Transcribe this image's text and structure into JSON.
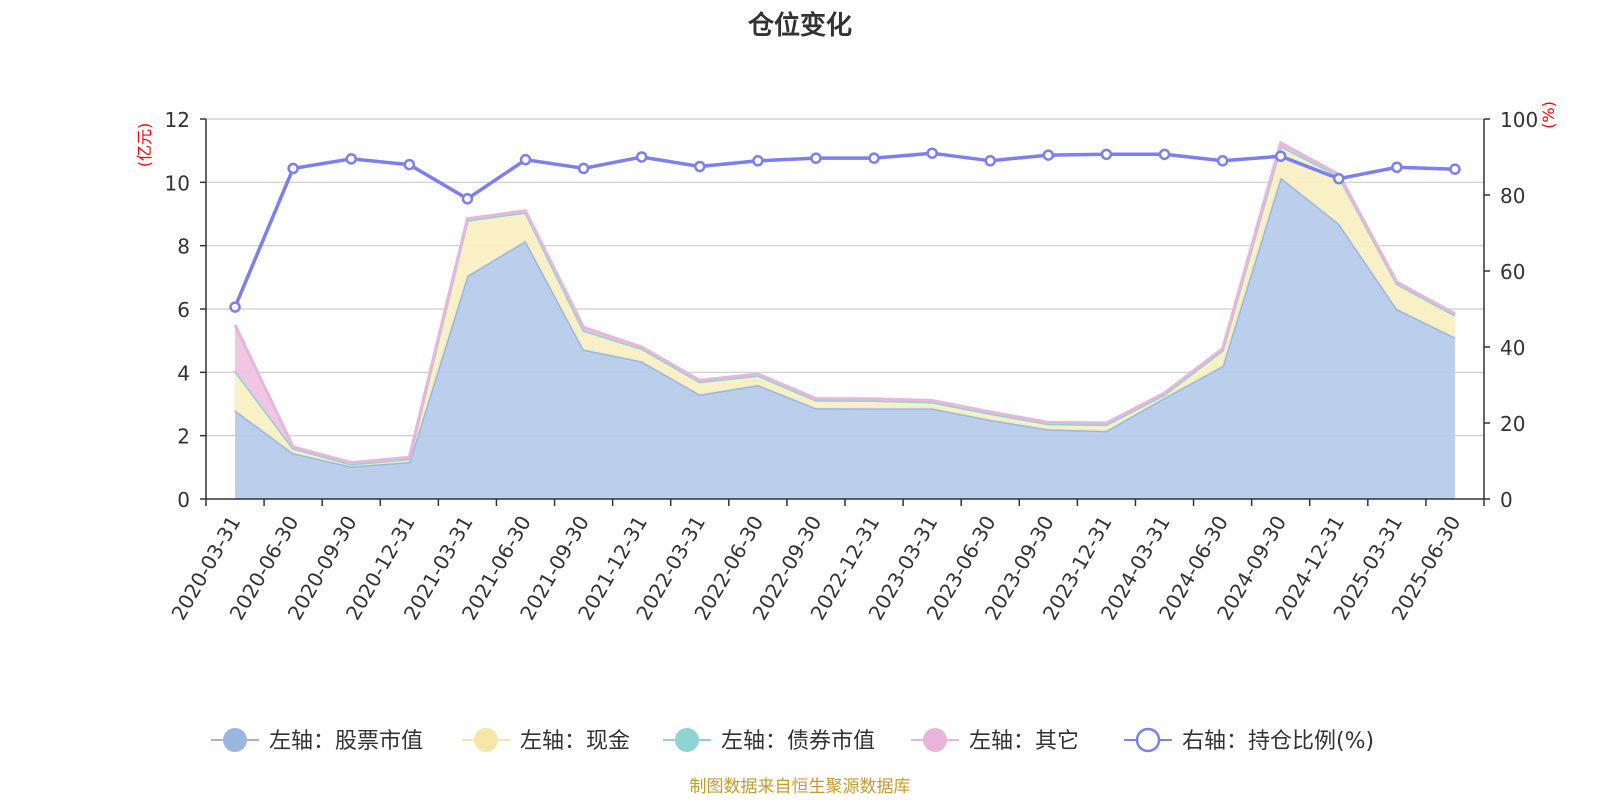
{
  "chart_data": {
    "type": "area",
    "title": "仓位变化",
    "source": "制图数据来自恒生聚源数据库",
    "left_axis": {
      "unit": "(亿元)",
      "min": 0,
      "max": 12,
      "ticks": [
        "0",
        "2",
        "4",
        "6",
        "8",
        "10",
        "12"
      ],
      "unit_color": "#ff0000"
    },
    "right_axis": {
      "unit": "(%)",
      "min": 0,
      "max": 100,
      "ticks": [
        "0",
        "20",
        "40",
        "60",
        "80",
        "100"
      ],
      "unit_color": "#ff0000"
    },
    "x": [
      "2020-03-31",
      "2020-06-30",
      "2020-09-30",
      "2020-12-31",
      "2021-03-31",
      "2021-06-30",
      "2021-09-30",
      "2021-12-31",
      "2022-03-31",
      "2022-06-30",
      "2022-09-30",
      "2022-12-31",
      "2023-03-31",
      "2023-06-30",
      "2023-09-30",
      "2023-12-31",
      "2024-03-31",
      "2024-06-30",
      "2024-09-30",
      "2024-12-31",
      "2025-03-31",
      "2025-06-30"
    ],
    "series": [
      {
        "name": "左轴：股票市值",
        "axis": "left",
        "color": "#9bb7e0",
        "fill": "#b7cceb",
        "values": [
          2.8,
          1.45,
          1.03,
          1.17,
          7.05,
          8.15,
          4.72,
          4.35,
          3.3,
          3.6,
          2.87,
          2.86,
          2.86,
          2.5,
          2.2,
          2.15,
          3.2,
          4.2,
          10.15,
          8.7,
          6.0,
          5.1
        ]
      },
      {
        "name": "左轴：现金",
        "axis": "left",
        "color": "#f6e7a8",
        "fill": "#f9efc2",
        "values": [
          1.25,
          0.15,
          0.07,
          0.1,
          1.75,
          0.9,
          0.6,
          0.4,
          0.4,
          0.3,
          0.25,
          0.25,
          0.2,
          0.2,
          0.17,
          0.2,
          0.1,
          0.5,
          1.0,
          1.5,
          0.8,
          0.7
        ]
      },
      {
        "name": "左轴：债券市值",
        "axis": "left",
        "color": "#8fd3d3",
        "fill": "#a8dede",
        "values": [
          0,
          0,
          0,
          0,
          0,
          0,
          0,
          0,
          0,
          0,
          0,
          0,
          0,
          0,
          0,
          0,
          0,
          0,
          0,
          0,
          0,
          0
        ]
      },
      {
        "name": "左轴：其它",
        "axis": "left",
        "color": "#e8b6dc",
        "fill": "#efc3e3",
        "values": [
          1.45,
          0.05,
          0.05,
          0.05,
          0.05,
          0.05,
          0.1,
          0.05,
          0.05,
          0.05,
          0.05,
          0.05,
          0.05,
          0.05,
          0.05,
          0.05,
          0.05,
          0.05,
          0.1,
          0.05,
          0.05,
          0.05
        ]
      },
      {
        "name": "右轴：持仓比例(%)",
        "axis": "right",
        "color": "#7b7ff0",
        "values": [
          50.5,
          87,
          89.5,
          88,
          79,
          89.3,
          87,
          90,
          87.5,
          89,
          89.7,
          89.7,
          91,
          89,
          90.5,
          90.7,
          90.7,
          89,
          90.2,
          84.3,
          87.3,
          86.8
        ]
      }
    ],
    "grid": true,
    "legend_position": "bottom"
  }
}
